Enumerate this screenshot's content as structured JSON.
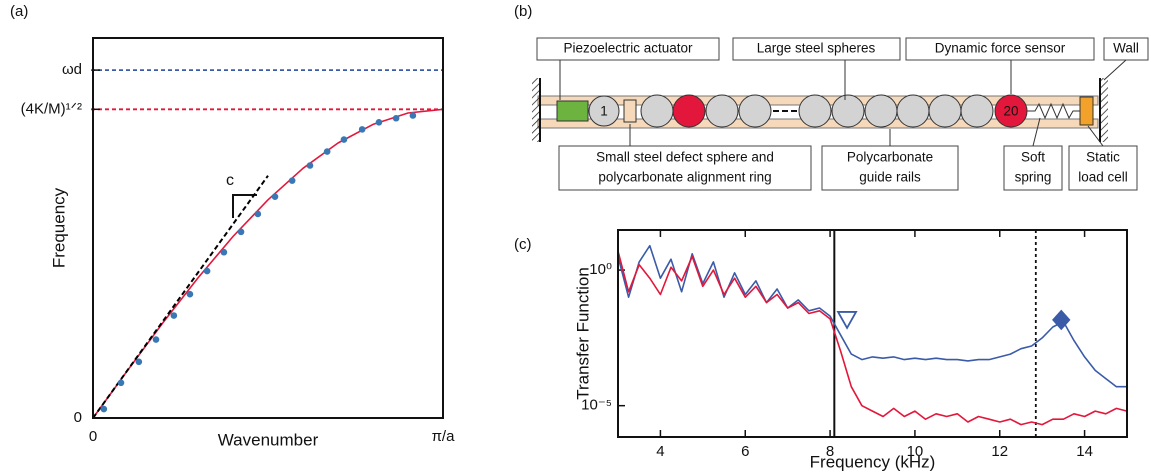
{
  "chart_data": [
    {
      "type": "line",
      "panel_label": "(a)",
      "x_label": "Wavenumber",
      "y_label": "Frequency",
      "annotation": "c",
      "xlim": [
        0,
        1
      ],
      "ylim": [
        0,
        1.231
      ],
      "xticks": [
        0,
        {
          "value": 1,
          "label": "π/a"
        }
      ],
      "yticks": [
        0,
        {
          "value": 1,
          "label": "(4K/M)¹ᐟ²"
        },
        {
          "value": 1.127,
          "label": "ωd"
        }
      ],
      "hlines": [
        {
          "value": 1,
          "color": "#e3173b"
        },
        {
          "value": 1.127,
          "color": "#3b5ba9"
        }
      ],
      "series": [
        {
          "style": "solid",
          "color": "#e3173b",
          "x": [
            0,
            0.1,
            0.2,
            0.3,
            0.4,
            0.5,
            0.6,
            0.7,
            0.8,
            0.9,
            1
          ],
          "values": [
            0,
            0.156,
            0.309,
            0.454,
            0.588,
            0.707,
            0.809,
            0.891,
            0.951,
            0.988,
            1
          ]
        },
        {
          "style": "dashed",
          "color": "#000000",
          "x": [
            0,
            0.5
          ],
          "values": [
            0,
            0.785
          ]
        },
        {
          "style": "dots",
          "color": "#3a78b5",
          "x": [
            0.031,
            0.08,
            0.131,
            0.18,
            0.231,
            0.277,
            0.326,
            0.374,
            0.423,
            0.471,
            0.52,
            0.569,
            0.62,
            0.669,
            0.717,
            0.769,
            0.817,
            0.866,
            0.914
          ],
          "values": [
            0.029,
            0.114,
            0.182,
            0.254,
            0.332,
            0.401,
            0.476,
            0.537,
            0.603,
            0.661,
            0.717,
            0.769,
            0.818,
            0.863,
            0.902,
            0.935,
            0.958,
            0.971,
            0.98
          ]
        }
      ]
    },
    {
      "type": "line",
      "panel_label": "(c)",
      "x_label": "Frequency (kHz)",
      "y_label": "Transfer Function",
      "ylog": true,
      "xlim": [
        3,
        15
      ],
      "ylim": [
        7e-07,
        30
      ],
      "xticks": [
        4,
        6,
        8,
        10,
        12,
        14
      ],
      "yticks": [
        {
          "value": 1,
          "label": "10⁰"
        },
        {
          "value": 1e-05,
          "label": "10⁻⁵"
        }
      ],
      "vlines": [
        {
          "value": 8.1,
          "style": "solid"
        },
        {
          "value": 12.85,
          "style": "dotted"
        }
      ],
      "markers": [
        {
          "shape": "triangle",
          "color": "#3b5ba9",
          "x": 8.4,
          "value": 0.0145
        },
        {
          "shape": "diamond",
          "color": "#3b5ba9",
          "x": 13.45,
          "value": 0.0145
        }
      ],
      "series": [
        {
          "style": "solid",
          "color": "#3b5ba9",
          "x": [
            3,
            3.25,
            3.5,
            3.75,
            4,
            4.25,
            4.5,
            4.75,
            5,
            5.25,
            5.5,
            5.75,
            6,
            6.25,
            6.5,
            6.75,
            7,
            7.25,
            7.5,
            7.75,
            8,
            8.25,
            8.5,
            8.75,
            9,
            9.25,
            9.5,
            9.75,
            10,
            10.25,
            10.5,
            10.75,
            11,
            11.25,
            11.5,
            11.75,
            12,
            12.25,
            12.5,
            12.75,
            13,
            13.25,
            13.5,
            13.75,
            14,
            14.25,
            14.5,
            14.75,
            15
          ],
          "values": [
            3.16,
            0.1,
            2,
            7.94,
            0.501,
            2.51,
            0.158,
            3.98,
            0.316,
            2,
            0.1,
            0.794,
            0.126,
            0.398,
            0.0631,
            0.2,
            0.0398,
            0.0794,
            0.0316,
            0.0398,
            0.02,
            0.00398,
            0.000794,
            0.000501,
            0.000631,
            0.000562,
            0.000631,
            0.000501,
            0.000562,
            0.000501,
            0.000562,
            0.000501,
            0.000501,
            0.000447,
            0.000501,
            0.000501,
            0.000631,
            0.000794,
            0.00126,
            0.00158,
            0.00316,
            0.00794,
            0.0126,
            0.00251,
            0.000631,
            0.0002,
            0.0001,
            5.01e-05,
            5.01e-05
          ]
        },
        {
          "style": "solid",
          "color": "#e3173b",
          "x": [
            3,
            3.25,
            3.5,
            3.75,
            4,
            4.25,
            4.5,
            4.75,
            5,
            5.25,
            5.5,
            5.75,
            6,
            6.25,
            6.5,
            6.75,
            7,
            7.25,
            7.5,
            7.75,
            8,
            8.25,
            8.5,
            8.75,
            9,
            9.25,
            9.5,
            9.75,
            10,
            10.25,
            10.5,
            10.75,
            11,
            11.25,
            11.5,
            11.75,
            12,
            12.25,
            12.5,
            12.75,
            13,
            13.25,
            13.5,
            13.75,
            14,
            14.25,
            14.5,
            14.75,
            15
          ],
          "values": [
            5.01,
            0.158,
            1.58,
            0.501,
            0.126,
            1.26,
            0.398,
            3.16,
            0.251,
            1,
            0.126,
            0.501,
            0.1,
            0.251,
            0.0631,
            0.126,
            0.0398,
            0.0631,
            0.0251,
            0.0316,
            0.0158,
            0.001,
            5.01e-05,
            1e-05,
            6.31e-06,
            3.98e-06,
            7.94e-06,
            3.98e-06,
            6.31e-06,
            3.16e-06,
            5.01e-06,
            3.98e-06,
            5.01e-06,
            2.51e-06,
            3.98e-06,
            3.16e-06,
            2.51e-06,
            3.16e-06,
            2e-06,
            2.51e-06,
            2e-06,
            3.16e-06,
            3.16e-06,
            5.01e-06,
            3.98e-06,
            6.31e-06,
            5.01e-06,
            7.94e-06,
            6.31e-06
          ]
        }
      ]
    }
  ],
  "diagram": {
    "panel_label": "(b)",
    "top_labels": [
      "Piezoelectric actuator",
      "Large steel spheres",
      "Dynamic force sensor",
      "Wall"
    ],
    "bottom_labels": [
      [
        "Small steel defect sphere and",
        "polycarbonate alignment ring"
      ],
      [
        "Polycarbonate",
        "guide rails"
      ],
      [
        "Soft",
        "spring"
      ],
      [
        "Static",
        "load cell"
      ]
    ],
    "sphere_labels": [
      "1",
      "20"
    ]
  }
}
